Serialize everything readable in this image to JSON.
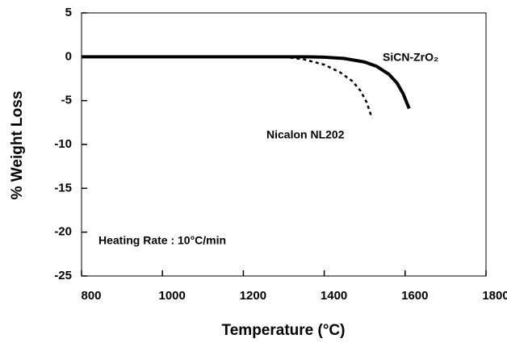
{
  "chart_data": {
    "type": "line",
    "xlabel": "Temperature (°C)",
    "ylabel": "% Weight Loss",
    "annotations": [
      "Heating Rate : 10°C/min"
    ],
    "xlim": [
      800,
      1800
    ],
    "xticks": [
      800,
      1000,
      1200,
      1400,
      1600,
      1800
    ],
    "ylim": [
      -25,
      5
    ],
    "yticks": [
      5,
      0,
      -5,
      -10,
      -15,
      -20,
      -25
    ],
    "series": [
      {
        "name": "SiCN-ZrO₂",
        "color": "#000000",
        "style": "solid",
        "x": [
          800,
          1000,
          1200,
          1350,
          1400,
          1450,
          1500,
          1530,
          1560,
          1580,
          1595,
          1610
        ],
        "values": [
          0,
          0,
          0,
          0,
          -0.05,
          -0.2,
          -0.6,
          -1.1,
          -2.0,
          -3.0,
          -4.2,
          -5.9
        ]
      },
      {
        "name": "Nicalon NL202",
        "color": "#000000",
        "style": "dashed",
        "x": [
          1300,
          1350,
          1400,
          1440,
          1470,
          1490,
          1505,
          1518
        ],
        "values": [
          0,
          -0.3,
          -0.9,
          -1.8,
          -2.8,
          -3.9,
          -5.2,
          -7.0
        ]
      }
    ]
  }
}
